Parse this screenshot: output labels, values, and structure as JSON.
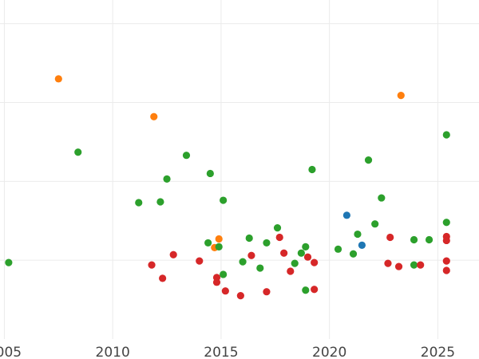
{
  "chart_data": {
    "type": "scatter",
    "title": "",
    "xlabel": "",
    "ylabel": "",
    "xlim": [
      2004.8,
      2026.9
    ],
    "ylim": [
      0,
      4.3
    ],
    "grid": true,
    "x_ticks": [
      2005,
      2010,
      2015,
      2020,
      2025
    ],
    "x_tick_labels": [
      "2005",
      "2010",
      "2015",
      "2020",
      "2025"
    ],
    "y_gridlines": [
      1,
      2,
      3,
      4
    ],
    "series": [
      {
        "color": "#ff7f0e",
        "points": [
          {
            "x": 2007.5,
            "y": 3.3
          },
          {
            "x": 2011.9,
            "y": 2.82
          },
          {
            "x": 2023.3,
            "y": 3.09
          },
          {
            "x": 2014.9,
            "y": 1.27
          },
          {
            "x": 2014.7,
            "y": 1.16
          }
        ]
      },
      {
        "color": "#2ca02c",
        "points": [
          {
            "x": 2005.2,
            "y": 0.97
          },
          {
            "x": 2008.4,
            "y": 2.37
          },
          {
            "x": 2011.2,
            "y": 1.73
          },
          {
            "x": 2012.2,
            "y": 1.74
          },
          {
            "x": 2012.5,
            "y": 2.03
          },
          {
            "x": 2013.4,
            "y": 2.33
          },
          {
            "x": 2014.5,
            "y": 2.1
          },
          {
            "x": 2015.1,
            "y": 1.76
          },
          {
            "x": 2014.4,
            "y": 1.22
          },
          {
            "x": 2014.9,
            "y": 1.17
          },
          {
            "x": 2015.1,
            "y": 0.82
          },
          {
            "x": 2016.0,
            "y": 0.98
          },
          {
            "x": 2016.3,
            "y": 1.28
          },
          {
            "x": 2016.8,
            "y": 0.9
          },
          {
            "x": 2017.1,
            "y": 1.22
          },
          {
            "x": 2017.6,
            "y": 1.41
          },
          {
            "x": 2018.4,
            "y": 0.96
          },
          {
            "x": 2018.7,
            "y": 1.09
          },
          {
            "x": 2018.9,
            "y": 1.17
          },
          {
            "x": 2018.9,
            "y": 0.62
          },
          {
            "x": 2019.2,
            "y": 2.15
          },
          {
            "x": 2020.4,
            "y": 1.14
          },
          {
            "x": 2021.1,
            "y": 1.08
          },
          {
            "x": 2021.3,
            "y": 1.33
          },
          {
            "x": 2021.8,
            "y": 2.27
          },
          {
            "x": 2022.1,
            "y": 1.46
          },
          {
            "x": 2022.4,
            "y": 1.79
          },
          {
            "x": 2023.9,
            "y": 1.26
          },
          {
            "x": 2023.9,
            "y": 0.94
          },
          {
            "x": 2024.6,
            "y": 1.26
          },
          {
            "x": 2025.4,
            "y": 2.59
          },
          {
            "x": 2025.4,
            "y": 1.48
          }
        ]
      },
      {
        "color": "#1f77b4",
        "points": [
          {
            "x": 2020.8,
            "y": 1.57
          },
          {
            "x": 2021.5,
            "y": 1.19
          }
        ]
      },
      {
        "color": "#d62728",
        "points": [
          {
            "x": 2011.8,
            "y": 0.94
          },
          {
            "x": 2012.3,
            "y": 0.77
          },
          {
            "x": 2012.8,
            "y": 1.07
          },
          {
            "x": 2014.0,
            "y": 0.99
          },
          {
            "x": 2014.8,
            "y": 0.78
          },
          {
            "x": 2014.8,
            "y": 0.72
          },
          {
            "x": 2015.2,
            "y": 0.61
          },
          {
            "x": 2015.9,
            "y": 0.55
          },
          {
            "x": 2016.4,
            "y": 1.06
          },
          {
            "x": 2017.1,
            "y": 0.6
          },
          {
            "x": 2017.7,
            "y": 1.29
          },
          {
            "x": 2017.9,
            "y": 1.09
          },
          {
            "x": 2018.2,
            "y": 0.86
          },
          {
            "x": 2019.0,
            "y": 1.04
          },
          {
            "x": 2019.3,
            "y": 0.97
          },
          {
            "x": 2019.3,
            "y": 0.63
          },
          {
            "x": 2022.7,
            "y": 0.96
          },
          {
            "x": 2022.8,
            "y": 1.29
          },
          {
            "x": 2023.2,
            "y": 0.92
          },
          {
            "x": 2024.2,
            "y": 0.94
          },
          {
            "x": 2025.4,
            "y": 1.3
          },
          {
            "x": 2025.4,
            "y": 1.25
          },
          {
            "x": 2025.4,
            "y": 0.99
          },
          {
            "x": 2025.4,
            "y": 0.87
          }
        ]
      }
    ]
  }
}
